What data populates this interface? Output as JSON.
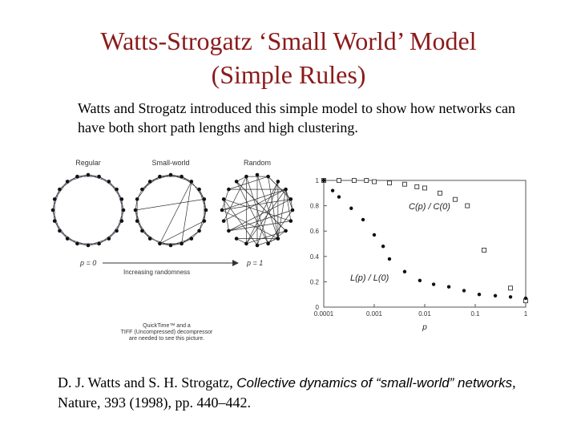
{
  "slide": {
    "title_line1": "Watts-Strogatz ‘Small World’ Model",
    "title_line2": "(Simple Rules)",
    "intro": "Watts and Strogatz introduced this simple model to show how networks can have both short path lengths and high clustering.",
    "colors": {
      "title": "#8b1a1a",
      "text": "#000000"
    }
  },
  "left_figure": {
    "ring_labels": [
      "Regular",
      "Small-world",
      "Random"
    ],
    "p_left": "p = 0",
    "p_right": "p = 1",
    "arrow_label": "Increasing randomness",
    "quicktime_line1": "QuickTime™ and a",
    "quicktime_line2": "TIFF (Uncompressed) decompressor",
    "quicktime_line3": "are needed to see this picture."
  },
  "chart_data": {
    "type": "scatter",
    "xscale": "log",
    "xlim": [
      0.0001,
      1
    ],
    "ylim": [
      0,
      1
    ],
    "xlabel": "p",
    "x_ticks": [
      "0.0001",
      "0.001",
      "0.01",
      "0.1",
      "1"
    ],
    "y_ticks": [
      "0",
      "0.2",
      "0.4",
      "0.6",
      "0.8",
      "1"
    ],
    "series": [
      {
        "name": "C(p) / C(0)",
        "marker": "open-square",
        "points": [
          [
            0.0001,
            1.0
          ],
          [
            0.0002,
            1.0
          ],
          [
            0.0004,
            1.0
          ],
          [
            0.0007,
            1.0
          ],
          [
            0.001,
            0.99
          ],
          [
            0.002,
            0.98
          ],
          [
            0.004,
            0.97
          ],
          [
            0.007,
            0.95
          ],
          [
            0.01,
            0.94
          ],
          [
            0.02,
            0.9
          ],
          [
            0.04,
            0.85
          ],
          [
            0.07,
            0.8
          ],
          [
            0.15,
            0.45
          ],
          [
            0.5,
            0.15
          ],
          [
            1.0,
            0.05
          ]
        ]
      },
      {
        "name": "L(p) / L(0)",
        "marker": "filled-circle",
        "points": [
          [
            0.0001,
            1.0
          ],
          [
            0.00015,
            0.92
          ],
          [
            0.0002,
            0.87
          ],
          [
            0.00035,
            0.78
          ],
          [
            0.0006,
            0.69
          ],
          [
            0.001,
            0.57
          ],
          [
            0.0015,
            0.48
          ],
          [
            0.002,
            0.38
          ],
          [
            0.004,
            0.28
          ],
          [
            0.008,
            0.21
          ],
          [
            0.015,
            0.18
          ],
          [
            0.03,
            0.16
          ],
          [
            0.06,
            0.13
          ],
          [
            0.12,
            0.1
          ],
          [
            0.25,
            0.09
          ],
          [
            0.5,
            0.08
          ],
          [
            1.0,
            0.07
          ]
        ]
      }
    ]
  },
  "citation": {
    "authors": "D. J. Watts and S. H. Strogatz, ",
    "title": "Collective dynamics of “small-world” networks",
    "rest": ", Nature, 393 (1998), pp. 440–442."
  }
}
